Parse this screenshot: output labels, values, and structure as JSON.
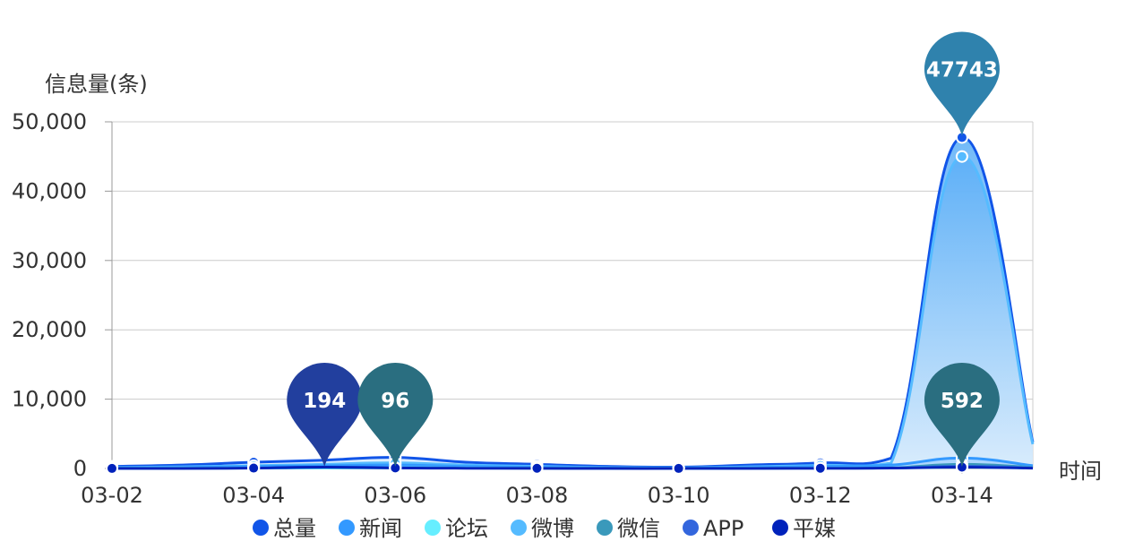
{
  "chart_data": {
    "type": "area",
    "ylabel": "信息量(条)",
    "xlabel": "时间",
    "ylim": [
      0,
      50000
    ],
    "yticks": [
      0,
      10000,
      20000,
      30000,
      40000,
      50000
    ],
    "ytick_labels": [
      "0",
      "10,000",
      "20,000",
      "30,000",
      "40,000",
      "50,000"
    ],
    "x": [
      "03-02",
      "03-03",
      "03-04",
      "03-05",
      "03-06",
      "03-07",
      "03-08",
      "03-09",
      "03-10",
      "03-11",
      "03-12",
      "03-13",
      "03-14",
      "03-15"
    ],
    "xtick_labels": [
      "03-02",
      "03-04",
      "03-06",
      "03-08",
      "03-10",
      "03-12",
      "03-14"
    ],
    "series": [
      {
        "name": "总量",
        "color": "#1155e8",
        "values": [
          300,
          500,
          900,
          1200,
          1600,
          900,
          600,
          300,
          200,
          500,
          800,
          1500,
          47743,
          3800
        ]
      },
      {
        "name": "新闻",
        "color": "#3399ff",
        "values": [
          100,
          150,
          300,
          400,
          500,
          300,
          200,
          100,
          80,
          150,
          300,
          500,
          1500,
          400
        ]
      },
      {
        "name": "论坛",
        "color": "#66eeff",
        "values": [
          50,
          60,
          80,
          100,
          120,
          80,
          60,
          40,
          30,
          50,
          70,
          100,
          200,
          80
        ]
      },
      {
        "name": "微博",
        "color": "#55bbff",
        "values": [
          150,
          250,
          400,
          600,
          800,
          500,
          300,
          150,
          100,
          250,
          450,
          800,
          45000,
          3500
        ]
      },
      {
        "name": "微信",
        "color": "#3a99bb",
        "values": [
          20,
          30,
          60,
          80,
          96,
          60,
          40,
          20,
          15,
          30,
          50,
          100,
          592,
          150
        ]
      },
      {
        "name": "APP",
        "color": "#3366dd",
        "values": [
          30,
          40,
          70,
          100,
          120,
          70,
          50,
          30,
          20,
          40,
          60,
          90,
          300,
          100
        ]
      },
      {
        "name": "平媒",
        "color": "#0022bb",
        "values": [
          10,
          20,
          60,
          194,
          80,
          40,
          30,
          10,
          10,
          20,
          40,
          60,
          200,
          50
        ]
      }
    ],
    "markers": [
      {
        "label": "194",
        "series": "平媒",
        "x": "03-05",
        "y": 0,
        "color": "#223f9e"
      },
      {
        "label": "96",
        "series": "微信",
        "x": "03-06",
        "y": 0,
        "color": "#2a6e80"
      },
      {
        "label": "47743",
        "series": "总量",
        "x": "03-14",
        "y": 47743,
        "color": "#2f82ad"
      },
      {
        "label": "592",
        "series": "微信",
        "x": "03-14",
        "y": 0,
        "color": "#2a6e80"
      }
    ],
    "legend_position": "bottom",
    "grid": true
  }
}
